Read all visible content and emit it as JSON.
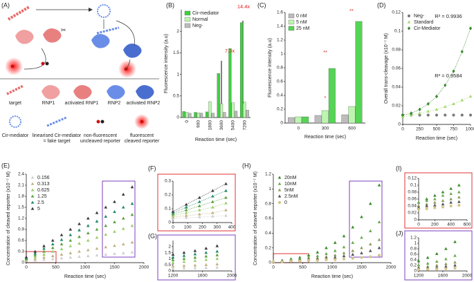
{
  "diagram": {
    "panel_label": "(A)",
    "legend": [
      {
        "lines": [
          "target"
        ]
      },
      {
        "lines": [
          "RNP1"
        ]
      },
      {
        "lines": [
          "activated RNP1"
        ]
      },
      {
        "lines": [
          "RNP2"
        ]
      },
      {
        "lines": [
          "activated RNP2"
        ]
      },
      {
        "lines": [
          "Cir-mediator"
        ]
      },
      {
        "lines": [
          "linearised Cir-mediator",
          "= fake target"
        ]
      },
      {
        "lines": [
          "non-fluorescent",
          "uncleaved reporter"
        ]
      },
      {
        "lines": [
          "fluorescent",
          "cleaved reporter"
        ]
      }
    ]
  },
  "chart_data": [
    {
      "type": "bar",
      "title": "(B)",
      "xlabel": "Reaction time (sec)",
      "ylabel": "Fluorescence intensity (a.u)",
      "categories": [
        "0",
        "900",
        "1800",
        "3600",
        "5400",
        "7200"
      ],
      "series": [
        {
          "name": "Cir-mediator",
          "color": "#3fd13f",
          "values": [
            0.14,
            0.12,
            0.13,
            1.02,
            1.6,
            2.2
          ]
        },
        {
          "name": "Normal",
          "color": "#bdf5b0",
          "values": [
            0.12,
            0.11,
            0.37,
            0.32,
            0.34,
            0.36
          ]
        },
        {
          "name": "Neg-",
          "color": "#bcbcbc",
          "values": [
            0.1,
            0.1,
            0.1,
            0.12,
            0.15,
            0.17
          ]
        }
      ],
      "ylim": [
        0,
        2.5
      ],
      "yticks": [
        0,
        0.5,
        1,
        1.5,
        2
      ],
      "legend": "upper left",
      "annotations": [
        "7.3x",
        "14.4x"
      ]
    },
    {
      "type": "bar",
      "title": "(C)",
      "xlabel": "Reaction time (sec)",
      "ylabel": "Fluorescence intensity (a.u)",
      "categories": [
        "0",
        "300",
        "600"
      ],
      "series": [
        {
          "name": "0 nM",
          "color": "#bcbcbc",
          "values": [
            0.08,
            0.11,
            0.12
          ]
        },
        {
          "name": "5 nM",
          "color": "#bdf5b0",
          "values": [
            0.09,
            0.18,
            0.24
          ]
        },
        {
          "name": "25 nM",
          "color": "#55d455",
          "values": [
            0.09,
            0.79,
            1.47
          ]
        }
      ],
      "ylim": [
        0,
        1.6
      ],
      "yticks": [
        0,
        0.2,
        0.4,
        0.6,
        0.8,
        1,
        1.2,
        1.4,
        1.6
      ],
      "legend": "upper left",
      "annotations": [
        "**",
        "*",
        "**"
      ]
    },
    {
      "type": "scatter",
      "title": "(D)",
      "xlabel": "Reaction time (sec)",
      "ylabel": "Overall trans-cleavage (x10⁻⁷ M)",
      "x": [
        0,
        125,
        250,
        375,
        500,
        625,
        750,
        875,
        1000
      ],
      "series": [
        {
          "name": "Neg-",
          "color": "#7a7a7a",
          "marker": "circle",
          "values": [
            0.01,
            0.01,
            0.01,
            0.01,
            0.01,
            0.01,
            0.01,
            0.01,
            0.01
          ]
        },
        {
          "name": "Standard",
          "color": "#a4d86e",
          "marker": "triangle",
          "line": "dotted",
          "values": [
            0.008,
            0.01,
            0.012,
            0.014,
            0.016,
            0.019,
            0.022,
            0.026,
            0.03
          ]
        },
        {
          "name": "Cir-Mediator",
          "color": "#3a8a2a",
          "marker": "diamond",
          "line": "dotted",
          "values": [
            0.01,
            0.012,
            0.016,
            0.022,
            0.03,
            0.042,
            0.057,
            0.078,
            0.103
          ]
        }
      ],
      "xlim": [
        0,
        1000
      ],
      "xticks": [
        0,
        250,
        500,
        750,
        1000
      ],
      "ylim": [
        0,
        0.12
      ],
      "yticks": [
        0,
        0.02,
        0.04,
        0.06,
        0.08,
        0.1,
        0.12
      ],
      "legend": "upper left",
      "annotations": [
        "R² = 0.9936",
        "R² = 0.9584"
      ]
    },
    {
      "type": "scatter",
      "title": "(E)",
      "xlabel": "Reaction time (sec)",
      "ylabel": "Concentration of cleaved reporter (x10⁻⁷ M)",
      "x": [
        0,
        150,
        300,
        450,
        600,
        750,
        900,
        1050,
        1200,
        1350,
        1500,
        1650,
        1800
      ],
      "series": [
        {
          "name": "0.156",
          "color": "#cfcfcf",
          "marker": "triangle",
          "values": [
            0.04,
            0.06,
            0.08,
            0.1,
            0.12,
            0.14,
            0.16,
            0.18,
            0.2,
            0.22,
            0.24,
            0.26,
            0.28
          ]
        },
        {
          "name": "0.313",
          "color": "#c2b280",
          "marker": "triangle",
          "values": [
            0.06,
            0.1,
            0.14,
            0.18,
            0.22,
            0.26,
            0.3,
            0.34,
            0.38,
            0.42,
            0.46,
            0.5,
            0.55
          ]
        },
        {
          "name": "0.625",
          "color": "#9acd6a",
          "marker": "triangle",
          "values": [
            0.08,
            0.15,
            0.22,
            0.3,
            0.37,
            0.45,
            0.52,
            0.6,
            0.68,
            0.76,
            0.84,
            0.92,
            1.0
          ]
        },
        {
          "name": "1.25",
          "color": "#5aa03c",
          "marker": "triangle",
          "values": [
            0.1,
            0.2,
            0.3,
            0.4,
            0.5,
            0.6,
            0.7,
            0.8,
            0.9,
            1.0,
            1.1,
            1.2,
            1.3
          ]
        },
        {
          "name": "2.5",
          "color": "#1f8a6a",
          "marker": "triangle",
          "values": [
            0.12,
            0.25,
            0.38,
            0.5,
            0.62,
            0.75,
            0.88,
            1.0,
            1.12,
            1.25,
            1.38,
            1.5,
            1.6
          ]
        },
        {
          "name": "5",
          "color": "#3a3a3a",
          "marker": "triangle",
          "values": [
            0.15,
            0.3,
            0.45,
            0.6,
            0.75,
            0.9,
            1.05,
            1.2,
            1.35,
            1.5,
            1.65,
            1.85,
            2.05
          ]
        }
      ],
      "xlim": [
        0,
        2000
      ],
      "xticks": [
        0,
        500,
        1000,
        1500,
        2000
      ],
      "ylim": [
        0,
        2.4
      ],
      "yticks": [
        0,
        0.3,
        0.6,
        0.9,
        1.2,
        1.5,
        1.8,
        2.1,
        2.4
      ],
      "legend": "upper left"
    },
    {
      "type": "scatter",
      "title": "(F)",
      "x": [
        0,
        90,
        180,
        270,
        360
      ],
      "series": [
        {
          "color": "#cfcfcf",
          "marker": "triangle",
          "line": "dotted",
          "values": [
            0.03,
            0.035,
            0.04,
            0.045,
            0.05
          ]
        },
        {
          "color": "#c2b280",
          "marker": "triangle",
          "line": "dotted",
          "values": [
            0.04,
            0.05,
            0.06,
            0.07,
            0.09
          ]
        },
        {
          "color": "#9acd6a",
          "marker": "triangle",
          "line": "dotted",
          "values": [
            0.05,
            0.07,
            0.09,
            0.11,
            0.14
          ]
        },
        {
          "color": "#5aa03c",
          "marker": "triangle",
          "line": "dotted",
          "values": [
            0.06,
            0.09,
            0.12,
            0.15,
            0.18
          ]
        },
        {
          "color": "#1f8a6a",
          "marker": "triangle",
          "line": "dotted",
          "values": [
            0.07,
            0.11,
            0.15,
            0.19,
            0.23
          ]
        },
        {
          "color": "#3a3a3a",
          "marker": "triangle",
          "line": "dotted",
          "values": [
            0.08,
            0.13,
            0.18,
            0.23,
            0.28
          ]
        }
      ],
      "xlim": [
        0,
        400
      ],
      "xticks": [
        0,
        100,
        200,
        300,
        400
      ],
      "ylim": [
        0,
        0.3
      ],
      "yticks": [
        0,
        0.1,
        0.2,
        0.3
      ]
    },
    {
      "type": "scatter",
      "title": "(G)",
      "x": [
        1200,
        1350,
        1500,
        1650,
        1800
      ],
      "series": [
        {
          "color": "#cfcfcf",
          "marker": "triangle",
          "values": [
            0.2,
            0.22,
            0.24,
            0.26,
            0.28
          ]
        },
        {
          "color": "#c2b280",
          "marker": "triangle",
          "values": [
            0.38,
            0.42,
            0.46,
            0.5,
            0.55
          ]
        },
        {
          "color": "#9acd6a",
          "marker": "triangle",
          "values": [
            0.68,
            0.76,
            0.84,
            0.92,
            1.0
          ]
        },
        {
          "color": "#5aa03c",
          "marker": "triangle",
          "values": [
            0.9,
            1.0,
            1.1,
            1.2,
            1.3
          ]
        },
        {
          "color": "#1f8a6a",
          "marker": "triangle",
          "values": [
            1.12,
            1.25,
            1.38,
            1.5,
            1.6
          ]
        },
        {
          "color": "#3a3a3a",
          "marker": "triangle",
          "values": [
            1.35,
            1.5,
            1.65,
            1.85,
            2.05
          ]
        }
      ],
      "xlim": [
        1200,
        2000
      ],
      "xticks": [
        1200,
        1600,
        2000
      ],
      "ylim": [
        0,
        2.5
      ],
      "yticks": [
        0,
        0.5,
        1,
        1.5,
        2
      ]
    },
    {
      "type": "scatter",
      "title": "(H)",
      "xlabel": "Reaction time (sec)",
      "ylabel": "Concentration of cleaved reporter (x10⁻⁷ M)",
      "x": [
        0,
        150,
        300,
        450,
        600,
        750,
        900,
        1050,
        1200,
        1350,
        1500,
        1650,
        1800
      ],
      "series": [
        {
          "name": "20nM",
          "color": "#3a8a2a",
          "marker": "triangle",
          "values": [
            0.02,
            0.03,
            0.05,
            0.07,
            0.1,
            0.14,
            0.2,
            0.27,
            0.36,
            0.48,
            0.62,
            0.8,
            1.05
          ]
        },
        {
          "name": "10nM",
          "color": "#6aa84f",
          "marker": "triangle",
          "values": [
            0.02,
            0.03,
            0.04,
            0.05,
            0.07,
            0.09,
            0.12,
            0.16,
            0.21,
            0.27,
            0.34,
            0.43,
            0.55
          ]
        },
        {
          "name": "5nM",
          "color": "#8c9c5c",
          "marker": "triangle",
          "values": [
            0.02,
            0.02,
            0.03,
            0.04,
            0.05,
            0.06,
            0.08,
            0.1,
            0.13,
            0.16,
            0.2,
            0.25,
            0.31
          ]
        },
        {
          "name": "2.5nM",
          "color": "#555555",
          "marker": "triangle",
          "values": [
            0.01,
            0.02,
            0.02,
            0.03,
            0.04,
            0.05,
            0.06,
            0.07,
            0.09,
            0.11,
            0.13,
            0.16,
            0.2
          ]
        },
        {
          "name": "0",
          "color": "#d4c48a",
          "marker": "circle",
          "values": [
            0.01,
            0.01,
            0.02,
            0.02,
            0.03,
            0.03,
            0.04,
            0.04,
            0.05,
            0.06,
            0.07,
            0.08,
            0.1
          ]
        }
      ],
      "xlim": [
        0,
        2000
      ],
      "xticks": [
        0,
        500,
        1000,
        1500,
        2000
      ],
      "ylim": [
        0,
        1.2
      ],
      "yticks": [
        0,
        0.2,
        0.4,
        0.6,
        0.8,
        1,
        1.2
      ],
      "legend": "upper left"
    },
    {
      "type": "scatter",
      "title": "(I)",
      "x": [
        0,
        100,
        200,
        300,
        400,
        500
      ],
      "series": [
        {
          "color": "#3a8a2a",
          "marker": "triangle",
          "values": [
            0.05,
            0.06,
            0.07,
            0.08,
            0.09,
            0.1
          ]
        },
        {
          "color": "#6aa84f",
          "marker": "triangle",
          "values": [
            0.05,
            0.055,
            0.06,
            0.07,
            0.075,
            0.08
          ]
        },
        {
          "color": "#8c9c5c",
          "marker": "triangle",
          "values": [
            0.04,
            0.045,
            0.05,
            0.055,
            0.06,
            0.065
          ]
        },
        {
          "color": "#555555",
          "marker": "triangle",
          "values": [
            0.035,
            0.04,
            0.042,
            0.045,
            0.05,
            0.052
          ]
        },
        {
          "color": "#d4c48a",
          "marker": "circle",
          "values": [
            0.03,
            0.032,
            0.035,
            0.037,
            0.04,
            0.042
          ]
        }
      ],
      "xlim": [
        0,
        600
      ],
      "xticks": [
        0,
        200,
        400,
        600
      ],
      "ylim": [
        0,
        0.12
      ],
      "yticks": [
        0,
        0.02,
        0.04,
        0.06,
        0.08,
        0.1,
        0.12
      ]
    },
    {
      "type": "scatter",
      "title": "(J)",
      "x": [
        1200,
        1350,
        1500,
        1650,
        1800
      ],
      "series": [
        {
          "color": "#3a8a2a",
          "marker": "triangle",
          "values": [
            0.36,
            0.48,
            0.62,
            0.8,
            1.05
          ]
        },
        {
          "color": "#6aa84f",
          "marker": "triangle",
          "values": [
            0.21,
            0.27,
            0.34,
            0.43,
            0.55
          ]
        },
        {
          "color": "#8c9c5c",
          "marker": "triangle",
          "values": [
            0.13,
            0.16,
            0.2,
            0.25,
            0.31
          ]
        },
        {
          "color": "#555555",
          "marker": "triangle",
          "values": [
            0.09,
            0.11,
            0.13,
            0.16,
            0.2
          ]
        },
        {
          "color": "#d4c48a",
          "marker": "circle",
          "values": [
            0.05,
            0.06,
            0.07,
            0.08,
            0.1
          ]
        }
      ],
      "xlim": [
        1200,
        2000
      ],
      "xticks": [
        1200,
        1600,
        2000
      ],
      "ylim": [
        0,
        1.2
      ],
      "yticks": [
        0,
        0.2,
        0.4,
        0.6,
        0.8,
        1,
        1.2
      ]
    }
  ]
}
